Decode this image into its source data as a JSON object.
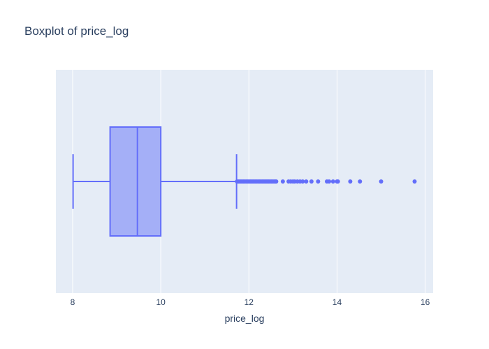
{
  "chart_data": {
    "type": "box",
    "title": "Boxplot of price_log",
    "xlabel": "price_log",
    "ylabel": "",
    "xlim": [
      7.62,
      16.18
    ],
    "xticks": [
      8,
      10,
      12,
      14,
      16
    ],
    "orientation": "horizontal",
    "grid": true,
    "colors": {
      "plot_bg": "#e5ecf6",
      "grid": "#ffffff",
      "box_fill": "#a4aff7",
      "box_line": "#636efa",
      "text": "#2a3f5f"
    },
    "box": {
      "lower_fence": 8.01,
      "q1": 8.85,
      "median": 9.47,
      "q3": 10.0,
      "upper_fence": 11.72
    },
    "outliers": [
      11.73,
      11.76,
      11.79,
      11.82,
      11.85,
      11.88,
      11.91,
      11.94,
      11.97,
      12.0,
      12.03,
      12.06,
      12.09,
      12.12,
      12.15,
      12.18,
      12.21,
      12.24,
      12.27,
      12.3,
      12.33,
      12.36,
      12.39,
      12.42,
      12.45,
      12.48,
      12.51,
      12.54,
      12.57,
      12.6,
      12.62,
      12.77,
      12.9,
      12.95,
      13.0,
      13.04,
      13.1,
      13.16,
      13.22,
      13.3,
      13.42,
      13.57,
      13.77,
      13.82,
      13.91,
      14.0,
      14.02,
      14.3,
      14.52,
      15.0,
      15.76
    ]
  }
}
